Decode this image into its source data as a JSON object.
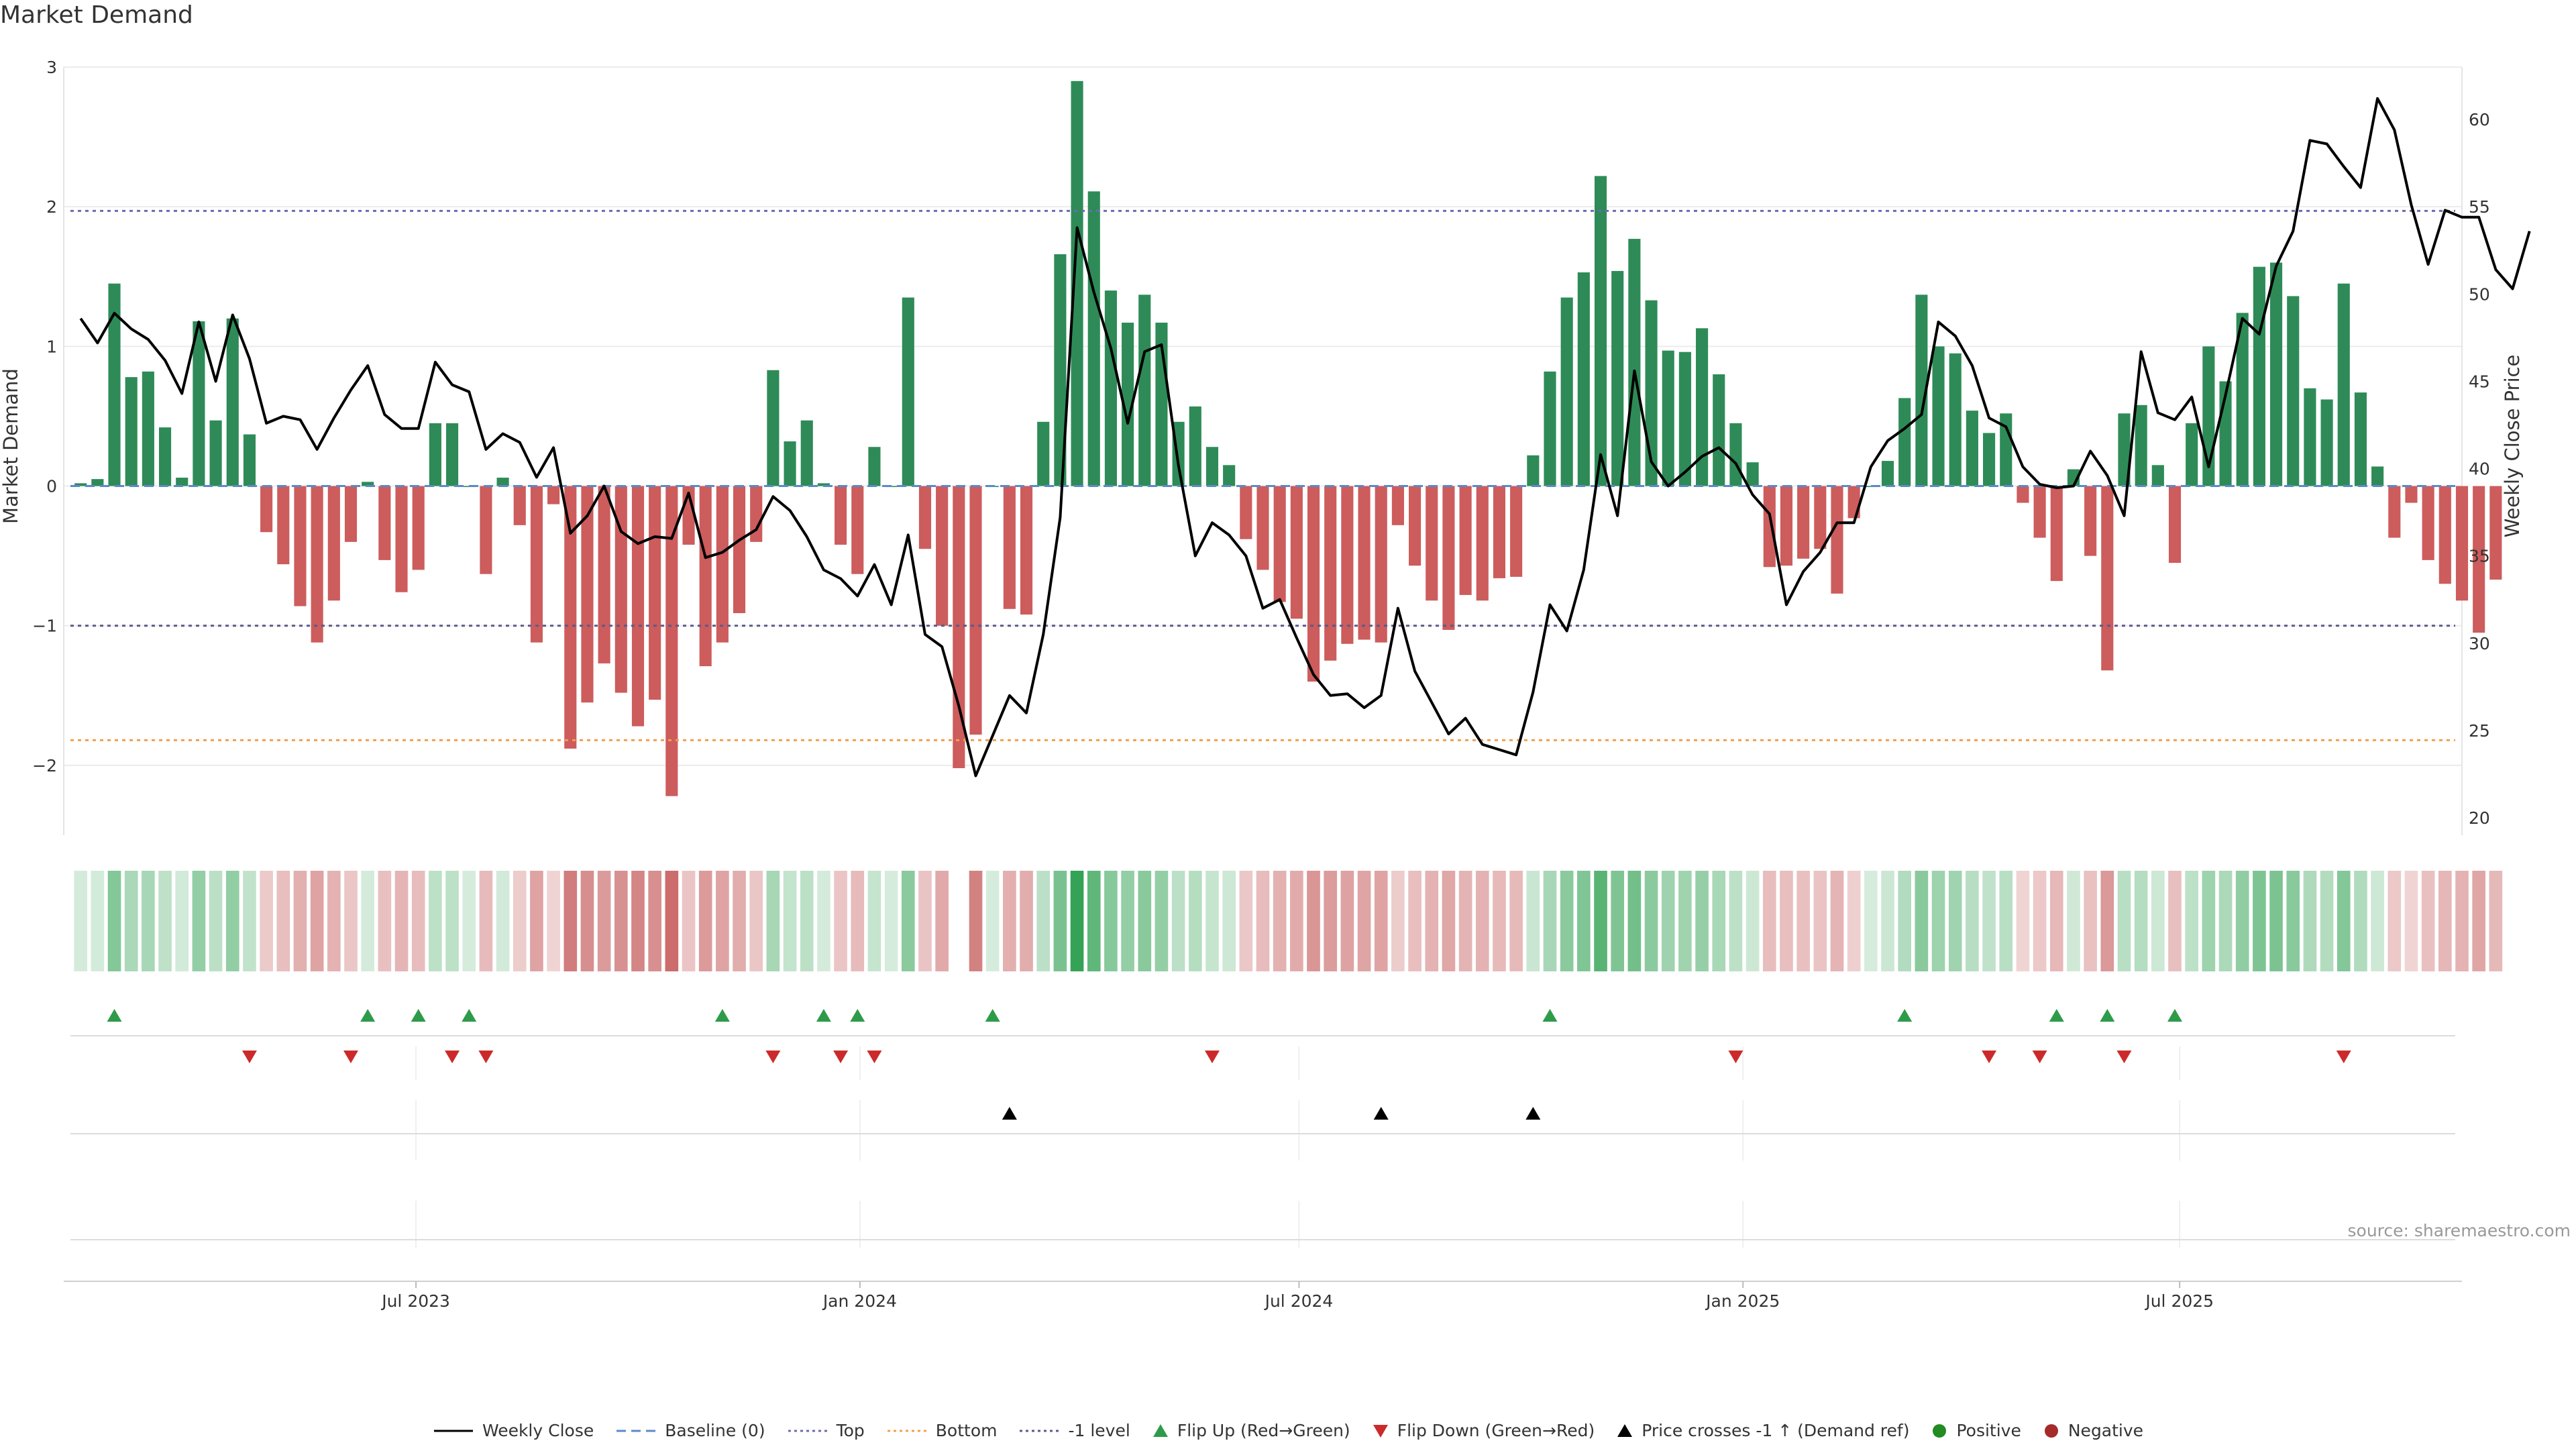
{
  "title": "Market Demand",
  "source_text": "source: sharemaestro.com",
  "colors": {
    "green": "#2e8b57",
    "red": "#cd5c5c",
    "line": "#000000",
    "top": "#6b6bb0",
    "bottom": "#f0a050",
    "minus1": "#5a5a8a",
    "flip_up": "#2e9b4a",
    "flip_down": "#cc2a2a",
    "cross": "#000000"
  },
  "legend": [
    {
      "icon": "solid-line",
      "label": "Weekly Close"
    },
    {
      "icon": "dashed-line",
      "label": "Baseline (0)"
    },
    {
      "icon": "dotted-line-purple",
      "label": "Top"
    },
    {
      "icon": "dotted-line-orange",
      "label": "Bottom"
    },
    {
      "icon": "dotted-line-navy",
      "label": "-1 level"
    },
    {
      "icon": "triangle-up-green",
      "label": "Flip Up (Red→Green)"
    },
    {
      "icon": "triangle-down-red",
      "label": "Flip Down (Green→Red)"
    },
    {
      "icon": "triangle-up-black",
      "label": "Price crosses -1 ↑ (Demand ref)"
    },
    {
      "icon": "dot-green",
      "label": "Positive"
    },
    {
      "icon": "dot-red",
      "label": "Negative"
    }
  ],
  "chart_data": {
    "type": "bar",
    "ylabel_left": "Market Demand",
    "ylabel_right": "Weekly Close Price",
    "ylim_left": [
      -2.5,
      3.0
    ],
    "yticks_left": [
      3,
      2,
      1,
      0,
      -1,
      -2
    ],
    "ytick_labels_left": [
      "3",
      "2",
      "1",
      "0",
      "−1",
      "−2"
    ],
    "ylim_right": [
      19,
      63
    ],
    "yticks_right": [
      60,
      55,
      50,
      45,
      40,
      35,
      30,
      25,
      20
    ],
    "xlim": [
      "2023-02-05",
      "2025-10-26"
    ],
    "xticks": [
      {
        "date": "2023-07-01",
        "label": "Jul 2023"
      },
      {
        "date": "2024-01-01",
        "label": "Jan 2024"
      },
      {
        "date": "2024-07-01",
        "label": "Jul 2024"
      },
      {
        "date": "2025-01-01",
        "label": "Jan 2025"
      },
      {
        "date": "2025-07-01",
        "label": "Jul 2025"
      }
    ],
    "reference_lines": {
      "top": 1.97,
      "bottom": -1.82,
      "minus_one": -1.0,
      "baseline": 0
    },
    "start_date": "2023-02-12",
    "demand": [
      0.02,
      0.05,
      1.45,
      0.78,
      0.82,
      0.42,
      0.06,
      1.18,
      0.47,
      1.2,
      0.37,
      -0.33,
      -0.56,
      -0.86,
      -1.12,
      -0.82,
      -0.4,
      0.03,
      -0.53,
      -0.76,
      -0.6,
      0.45,
      0.45,
      0.0,
      -0.63,
      0.06,
      -0.28,
      -1.12,
      -0.13,
      -1.88,
      -1.55,
      -1.27,
      -1.48,
      -1.72,
      -1.53,
      -2.22,
      -0.42,
      -1.29,
      -1.12,
      -0.91,
      -0.4,
      0.83,
      0.32,
      0.47,
      0.02,
      -0.42,
      -0.63,
      0.28,
      0.0,
      1.35,
      -0.45,
      -1.0,
      -2.02,
      -1.78,
      0.0,
      -0.88,
      -0.92,
      0.46,
      1.66,
      2.9,
      2.11,
      1.4,
      1.17,
      1.37,
      1.17,
      0.46,
      0.57,
      0.28,
      0.15,
      -0.38,
      -0.6,
      -0.83,
      -0.95,
      -1.4,
      -1.25,
      -1.13,
      -1.1,
      -1.12,
      -0.28,
      -0.57,
      -0.82,
      -1.03,
      -0.78,
      -0.82,
      -0.66,
      -0.65,
      0.22,
      0.82,
      1.35,
      1.53,
      2.22,
      1.54,
      1.77,
      1.33,
      0.97,
      0.96,
      1.13,
      0.8,
      0.45,
      0.17,
      -0.58,
      -0.57,
      -0.52,
      -0.45,
      -0.77,
      -0.23,
      0.0,
      0.18,
      0.63,
      1.37,
      1.0,
      0.95,
      0.54,
      0.38,
      0.52,
      -0.12,
      -0.37,
      -0.68,
      0.12,
      -0.5,
      -1.32,
      0.52,
      0.58,
      0.15,
      -0.55,
      0.45,
      1.0,
      0.75,
      1.24,
      1.57,
      1.6,
      1.36,
      0.7,
      0.62,
      1.45,
      0.67,
      0.14,
      -0.37,
      -0.12,
      -0.53,
      -0.7,
      -0.82,
      -1.05,
      -0.67
    ],
    "price": [
      48.6,
      47.2,
      48.9,
      48.0,
      47.4,
      46.2,
      44.3,
      48.4,
      45.0,
      48.8,
      46.3,
      42.6,
      43.0,
      42.8,
      41.1,
      42.9,
      44.5,
      45.9,
      43.1,
      42.3,
      42.3,
      46.1,
      44.8,
      44.4,
      41.1,
      42.0,
      41.5,
      39.5,
      41.2,
      36.3,
      37.3,
      39.0,
      36.4,
      35.7,
      36.1,
      36.0,
      38.6,
      34.9,
      35.2,
      35.9,
      36.5,
      38.4,
      37.6,
      36.1,
      34.2,
      33.7,
      32.7,
      34.5,
      32.2,
      36.2,
      30.5,
      29.8,
      26.4,
      22.4,
      24.7,
      27.0,
      26.0,
      30.5,
      37.2,
      53.8,
      50.1,
      46.9,
      42.6,
      46.7,
      47.1,
      40.2,
      35.0,
      36.9,
      36.2,
      35.0,
      32.0,
      32.5,
      30.3,
      28.2,
      27.0,
      27.1,
      26.3,
      27.0,
      32.0,
      28.4,
      26.6,
      24.8,
      25.7,
      24.2,
      23.9,
      23.6,
      27.2,
      32.2,
      30.7,
      34.2,
      40.8,
      37.3,
      45.6,
      40.4,
      39.0,
      39.8,
      40.7,
      41.2,
      40.3,
      38.5,
      37.4,
      32.2,
      34.1,
      35.2,
      36.9,
      36.9,
      40.1,
      41.6,
      42.3,
      43.1,
      48.4,
      47.6,
      45.9,
      42.9,
      42.4,
      40.1,
      39.1,
      38.9,
      39.0,
      41.0,
      39.6,
      37.3,
      46.7,
      43.2,
      42.8,
      44.1,
      40.1,
      44.2,
      48.6,
      47.7,
      51.6,
      53.6,
      58.8,
      58.6,
      57.3,
      56.1,
      61.2,
      59.4,
      55.1,
      51.7,
      54.8,
      54.4,
      54.4,
      51.4,
      50.3,
      53.6
    ],
    "flip_up": [
      "2023-02-26",
      "2023-06-11",
      "2023-07-02",
      "2023-07-23",
      "2023-11-05",
      "2023-12-17",
      "2023-12-31",
      "2024-02-25",
      "2024-10-13",
      "2025-03-09",
      "2025-05-11",
      "2025-06-01",
      "2025-06-29"
    ],
    "flip_down": [
      "2023-04-23",
      "2023-06-04",
      "2023-07-16",
      "2023-07-30",
      "2023-11-26",
      "2023-12-24",
      "2024-01-07",
      "2024-05-26",
      "2024-12-29",
      "2025-04-13",
      "2025-05-04",
      "2025-06-08",
      "2025-09-07"
    ],
    "price_cross_up": [
      "2024-03-03",
      "2024-08-04",
      "2024-10-06"
    ],
    "heatmap_start": "2023-02-12",
    "heatmap_gap_dates": [
      "2024-02-11"
    ]
  }
}
